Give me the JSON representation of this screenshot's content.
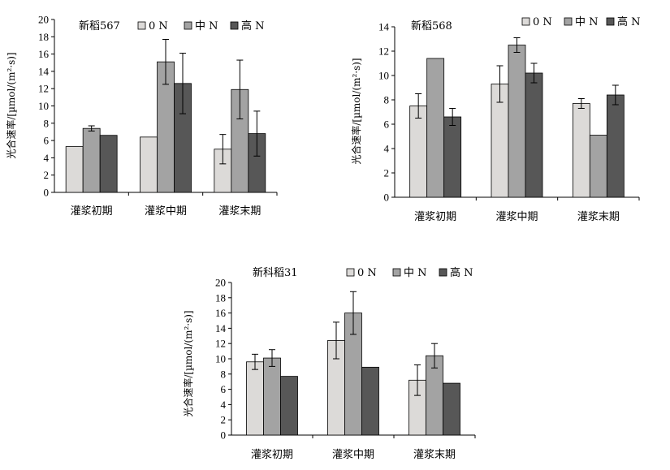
{
  "chart_data": [
    {
      "type": "bar",
      "title": "新稻567",
      "ylabel": "光合速率/[µmol/(m²·s)]",
      "ylim": [
        0,
        20
      ],
      "yticks": [
        0,
        2,
        4,
        6,
        8,
        10,
        12,
        14,
        16,
        18,
        20
      ],
      "categories": [
        "灌浆初期",
        "灌浆中期",
        "灌浆末期"
      ],
      "legend_position": "top-right",
      "series": [
        {
          "name": "0 N",
          "color": "#dcdad8",
          "values": [
            5.3,
            6.4,
            5.0
          ],
          "errors": [
            null,
            null,
            1.7
          ]
        },
        {
          "name": "中 N",
          "color": "#a3a3a3",
          "values": [
            7.4,
            15.1,
            11.9
          ],
          "errors": [
            0.3,
            2.6,
            3.4
          ]
        },
        {
          "name": "高 N",
          "color": "#575757",
          "values": [
            6.6,
            12.6,
            6.8
          ],
          "errors": [
            null,
            3.5,
            2.6
          ]
        }
      ]
    },
    {
      "type": "bar",
      "title": "新稻568",
      "ylabel": "光合速率/[µmol/(m²·s)]",
      "ylim": [
        0,
        14
      ],
      "yticks": [
        0,
        2,
        4,
        6,
        8,
        10,
        12,
        14
      ],
      "categories": [
        "灌浆初期",
        "灌浆中期",
        "灌浆末期"
      ],
      "legend_position": "top-right",
      "series": [
        {
          "name": "0 N",
          "color": "#dcdad8",
          "values": [
            7.5,
            9.3,
            7.7
          ],
          "errors": [
            1.0,
            1.5,
            0.4
          ]
        },
        {
          "name": "中 N",
          "color": "#a3a3a3",
          "values": [
            11.4,
            12.5,
            5.1
          ],
          "errors": [
            null,
            0.6,
            null
          ]
        },
        {
          "name": "高 N",
          "color": "#575757",
          "values": [
            6.6,
            10.2,
            8.4
          ],
          "errors": [
            0.7,
            0.8,
            0.8
          ]
        }
      ]
    },
    {
      "type": "bar",
      "title": "新科稻31",
      "ylabel": "光合速率/[µmol/(m²·s)]",
      "ylim": [
        0,
        20
      ],
      "yticks": [
        0,
        2,
        4,
        6,
        8,
        10,
        12,
        14,
        16,
        18,
        20
      ],
      "categories": [
        "灌浆初期",
        "灌浆中期",
        "灌浆末期"
      ],
      "legend_position": "top",
      "series": [
        {
          "name": "0 N",
          "color": "#dcdad8",
          "values": [
            9.6,
            12.4,
            7.2
          ],
          "errors": [
            1.0,
            2.4,
            2.0
          ]
        },
        {
          "name": "中 N",
          "color": "#a3a3a3",
          "values": [
            10.1,
            16.0,
            10.4
          ],
          "errors": [
            1.1,
            2.8,
            1.6
          ]
        },
        {
          "name": "高 N",
          "color": "#575757",
          "values": [
            7.7,
            8.9,
            6.8
          ],
          "errors": [
            null,
            null,
            null
          ]
        }
      ]
    }
  ]
}
